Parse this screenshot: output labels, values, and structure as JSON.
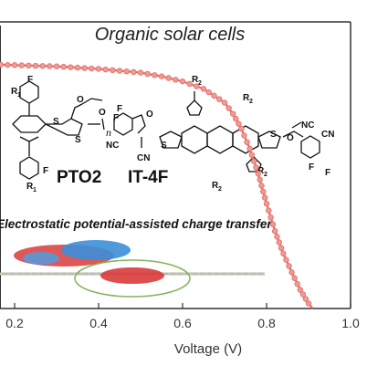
{
  "chart_data": {
    "type": "line",
    "title": "Organic solar cells",
    "xlabel": "Voltage (V)",
    "ylabel": "",
    "xlim": [
      0,
      1.0
    ],
    "x_ticks": [
      "0.2",
      "0.4",
      "0.6",
      "0.8",
      "1.0"
    ],
    "grid": false,
    "series": [
      {
        "color": "#e06c66",
        "marker_color": "#ef9a94",
        "x": [
          0.0,
          0.05,
          0.1,
          0.15,
          0.2,
          0.25,
          0.3,
          0.35,
          0.4,
          0.45,
          0.5,
          0.55,
          0.6,
          0.65,
          0.7,
          0.72,
          0.74,
          0.76,
          0.78,
          0.8,
          0.82,
          0.84,
          0.86,
          0.88,
          0.9,
          0.91
        ],
        "y": [
          -19.6,
          -19.6,
          -19.6,
          -19.55,
          -19.5,
          -19.45,
          -19.4,
          -19.3,
          -19.2,
          -19.05,
          -18.9,
          -18.6,
          -18.2,
          -17.6,
          -16.5,
          -15.6,
          -14.4,
          -12.8,
          -10.8,
          -8.4,
          -6.2,
          -4.4,
          -2.9,
          -1.5,
          -0.4,
          0.0
        ]
      }
    ],
    "annotations": {
      "subtitle": "Electrostatic potential-assisted charge transfer",
      "molecule_1": "PTO2",
      "molecule_2": "IT-4F",
      "subscript_n": "n",
      "r1": "R",
      "r2": "R",
      "sub1": "1",
      "sub2": "2",
      "f": "F",
      "o": "O",
      "s": "S",
      "nc": "NC",
      "cn": "CN"
    }
  }
}
